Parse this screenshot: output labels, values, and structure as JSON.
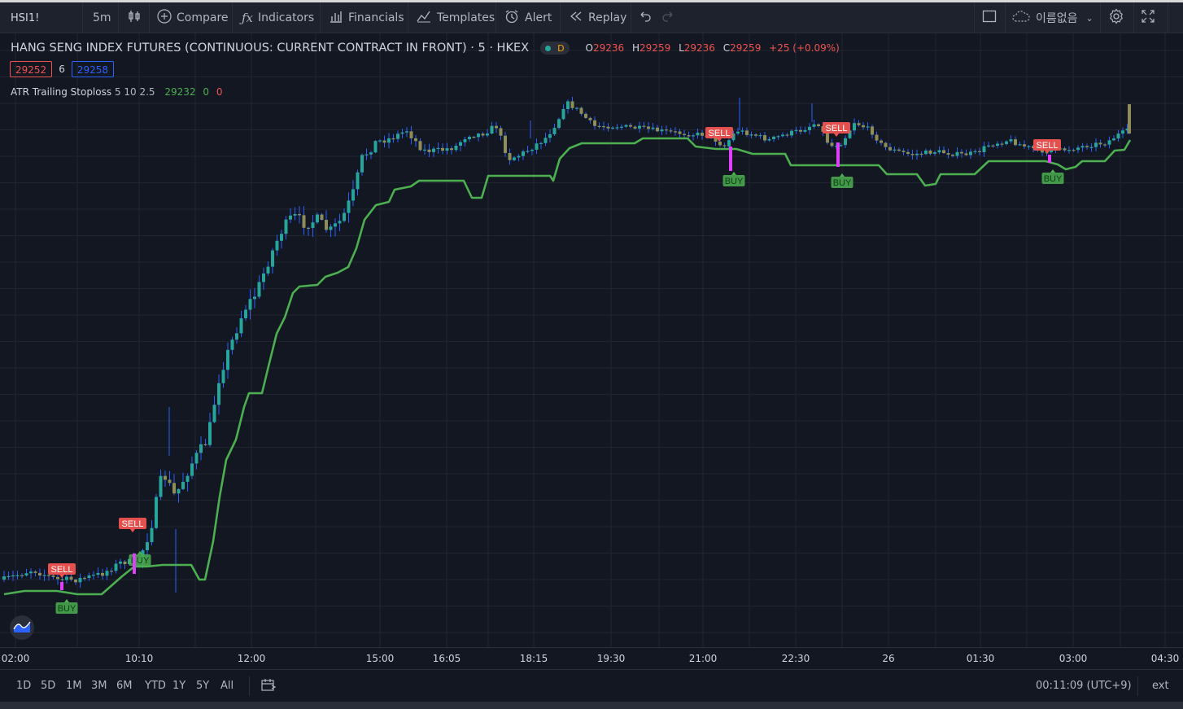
{
  "toolbar": {
    "symbol": "HSI1!",
    "interval": "5m",
    "compare_label": "Compare",
    "indicators_label": "Indicators",
    "financials_label": "Financials",
    "templates_label": "Templates",
    "alert_label": "Alert",
    "replay_label": "Replay",
    "layout_name": "이름없음"
  },
  "legend": {
    "title": "HANG SENG INDEX FUTURES (CONTINUOUS: CURRENT CONTRACT IN FRONT) · 5 · HKEX",
    "badge": "D",
    "o_label": "O",
    "o_value": "29236",
    "h_label": "H",
    "h_value": "29259",
    "l_label": "L",
    "l_value": "29236",
    "c_label": "C",
    "c_value": "29259",
    "change": "+25 (+0.09%)"
  },
  "quote": {
    "sell": "29252",
    "spread": "6",
    "buy": "29258"
  },
  "indicator": {
    "name": "ATR Trailing Stoploss",
    "params": "5 10 2.5",
    "value": "29232",
    "v2": "0",
    "v3": "0"
  },
  "chart_data": {
    "type": "candlestick",
    "x_ticks": [
      "02:00",
      "10:10",
      "12:00",
      "15:00",
      "16:05",
      "18:15",
      "19:30",
      "21:00",
      "22:30",
      "26",
      "01:30",
      "03:00",
      "04:30"
    ],
    "y_range_approx": [
      28800,
      29300
    ],
    "candle_colors": {
      "up": "#26a69a",
      "down": "#8d8d5a",
      "wick": "#2962ff"
    },
    "series": [
      {
        "name": "ATR Trailing Stoploss",
        "color": "#4caf50"
      }
    ],
    "signals": [
      {
        "type": "SELL",
        "time": "09:30"
      },
      {
        "type": "BUY",
        "time": "09:35"
      },
      {
        "type": "SELL",
        "time": "10:00"
      },
      {
        "type": "BUY",
        "time": "10:05"
      },
      {
        "type": "SELL",
        "time": "21:15"
      },
      {
        "type": "BUY",
        "time": "21:20"
      },
      {
        "type": "SELL",
        "time": "23:15"
      },
      {
        "type": "BUY",
        "time": "23:20"
      },
      {
        "type": "SELL",
        "time": "02:30"
      },
      {
        "type": "BUY",
        "time": "02:35"
      }
    ]
  },
  "ranges": [
    "1D",
    "5D",
    "1M",
    "3M",
    "6M",
    "YTD",
    "1Y",
    "5Y",
    "All"
  ],
  "status": {
    "clock": "00:11:09 (UTC+9)",
    "ext": "ext"
  }
}
